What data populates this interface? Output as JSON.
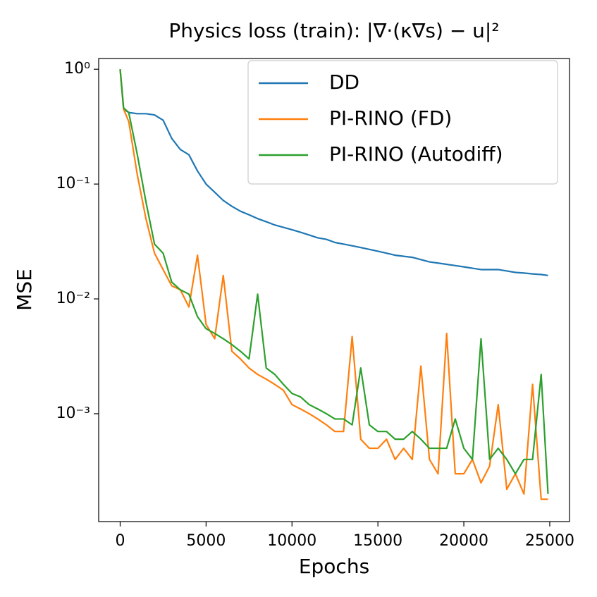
{
  "chart_data": {
    "type": "line",
    "title": "Physics loss (train): |∇·(κ∇s) − u|²",
    "xlabel": "Epochs",
    "ylabel": "MSE",
    "x": [
      0,
      200,
      500,
      1000,
      1500,
      2000,
      2500,
      3000,
      3500,
      4000,
      4500,
      5000,
      5500,
      6000,
      6500,
      7000,
      7500,
      8000,
      8500,
      9000,
      9500,
      10000,
      10500,
      11000,
      11500,
      12000,
      12500,
      13000,
      13500,
      14000,
      14500,
      15000,
      15500,
      16000,
      16500,
      17000,
      17500,
      18000,
      18500,
      19000,
      19500,
      20000,
      20500,
      21000,
      21500,
      22000,
      22500,
      23000,
      23500,
      24000,
      24500,
      24900
    ],
    "series": [
      {
        "name": "DD",
        "color": "#1f77b4",
        "values": [
          1.0,
          0.45,
          0.42,
          0.41,
          0.41,
          0.4,
          0.36,
          0.25,
          0.2,
          0.18,
          0.13,
          0.1,
          0.085,
          0.072,
          0.064,
          0.058,
          0.054,
          0.05,
          0.047,
          0.044,
          0.042,
          0.04,
          0.038,
          0.036,
          0.034,
          0.033,
          0.031,
          0.03,
          0.029,
          0.028,
          0.027,
          0.026,
          0.025,
          0.024,
          0.0235,
          0.023,
          0.022,
          0.021,
          0.0205,
          0.02,
          0.0195,
          0.019,
          0.0185,
          0.018,
          0.018,
          0.018,
          0.0175,
          0.017,
          0.0168,
          0.0165,
          0.0163,
          0.016
        ]
      },
      {
        "name": "PI-RINO (FD)",
        "color": "#ff7f0e",
        "values": [
          1.0,
          0.45,
          0.35,
          0.12,
          0.05,
          0.025,
          0.018,
          0.013,
          0.012,
          0.0085,
          0.024,
          0.006,
          0.0045,
          0.016,
          0.0035,
          0.003,
          0.0025,
          0.0022,
          0.002,
          0.0018,
          0.0016,
          0.0012,
          0.0011,
          0.001,
          0.0009,
          0.0008,
          0.0007,
          0.0007,
          0.0047,
          0.0006,
          0.0005,
          0.0005,
          0.0006,
          0.0004,
          0.0005,
          0.0004,
          0.0026,
          0.0004,
          0.0003,
          0.005,
          0.0003,
          0.0003,
          0.0004,
          0.00025,
          0.00035,
          0.0012,
          0.00022,
          0.0003,
          0.0002,
          0.0018,
          0.00018,
          0.00018
        ]
      },
      {
        "name": "PI-RINO (Autodiff)",
        "color": "#2ca02c",
        "values": [
          1.0,
          0.46,
          0.42,
          0.18,
          0.07,
          0.03,
          0.025,
          0.014,
          0.012,
          0.011,
          0.007,
          0.0055,
          0.005,
          0.0045,
          0.004,
          0.0035,
          0.003,
          0.011,
          0.0025,
          0.0022,
          0.0018,
          0.0015,
          0.0014,
          0.0012,
          0.0011,
          0.001,
          0.0009,
          0.0009,
          0.0008,
          0.0025,
          0.0008,
          0.0007,
          0.0007,
          0.0006,
          0.0006,
          0.0007,
          0.0006,
          0.0005,
          0.0005,
          0.0005,
          0.0009,
          0.0005,
          0.0004,
          0.0045,
          0.0004,
          0.0005,
          0.0004,
          0.0003,
          0.0004,
          0.0004,
          0.0022,
          0.0002
        ]
      }
    ],
    "xlim": [
      -1250,
      26150
    ],
    "xticks": [
      0,
      5000,
      10000,
      15000,
      20000,
      25000
    ],
    "ylim": [
      0.000115,
      1.24
    ],
    "ylog": true,
    "yticks": [
      {
        "value": 1,
        "label": "10⁰"
      },
      {
        "value": 0.1,
        "label": "10⁻¹"
      },
      {
        "value": 0.01,
        "label": "10⁻²"
      },
      {
        "value": 0.001,
        "label": "10⁻³"
      }
    ],
    "grid": false,
    "legend": "upper right"
  }
}
